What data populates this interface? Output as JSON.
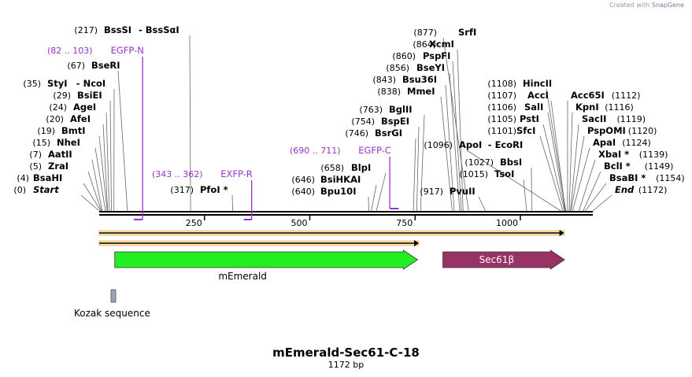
{
  "credit": {
    "prefix": "Created with",
    "brand": "SnapGene"
  },
  "map": {
    "name": "mEmerald-Sec61-C-18",
    "length_text": "1172 bp",
    "length_bp": 1172
  },
  "ticks": [
    {
      "bp": 250,
      "label": "250"
    },
    {
      "bp": 500,
      "label": "500"
    },
    {
      "bp": 750,
      "label": "750"
    },
    {
      "bp": 1000,
      "label": "1000"
    }
  ],
  "enzymes_left": [
    {
      "pos": "(217)",
      "name": "BssSI",
      "extra": "- BssSαI",
      "bp": 217
    },
    {
      "pos": "(67)",
      "name": "BseRI",
      "bp": 67
    },
    {
      "pos": "(35)",
      "name": "StyI",
      "extra": "- NcoI",
      "bp": 35
    },
    {
      "pos": "(29)",
      "name": "BsiEI",
      "bp": 29
    },
    {
      "pos": "(24)",
      "name": "AgeI",
      "bp": 24
    },
    {
      "pos": "(20)",
      "name": "AfeI",
      "bp": 20
    },
    {
      "pos": "(19)",
      "name": "BmtI",
      "bp": 19
    },
    {
      "pos": "(15)",
      "name": "NheI",
      "bp": 15
    },
    {
      "pos": "(7)",
      "name": "AatII",
      "bp": 7
    },
    {
      "pos": "(5)",
      "name": "ZraI",
      "bp": 5
    },
    {
      "pos": "(4)",
      "name": "BsaHI",
      "bp": 4
    },
    {
      "pos": "(0)",
      "name": "Start",
      "bp": 0,
      "italic": true
    },
    {
      "pos": "(317)",
      "name": "PfoI *",
      "bp": 317
    }
  ],
  "enzymes_mid": [
    {
      "pos": "(877)",
      "name": "SrfI",
      "bp": 877
    },
    {
      "pos": "(864)",
      "name": "XcmI",
      "bp": 864
    },
    {
      "pos": "(860)",
      "name": "PspFI",
      "bp": 860
    },
    {
      "pos": "(856)",
      "name": "BseYI",
      "bp": 856
    },
    {
      "pos": "(843)",
      "name": "Bsu36I",
      "bp": 843
    },
    {
      "pos": "(838)",
      "name": "MmeI",
      "bp": 838
    },
    {
      "pos": "(763)",
      "name": "BglII",
      "bp": 763
    },
    {
      "pos": "(754)",
      "name": "BspEI",
      "bp": 754
    },
    {
      "pos": "(746)",
      "name": "BsrGI",
      "bp": 746
    },
    {
      "pos": "(658)",
      "name": "BlpI",
      "bp": 658
    },
    {
      "pos": "(646)",
      "name": "BsiHKAI",
      "bp": 646
    },
    {
      "pos": "(640)",
      "name": "Bpu10I",
      "bp": 640
    },
    {
      "pos": "(917)",
      "name": "PvuII",
      "bp": 917
    },
    {
      "pos": "(1096)",
      "name": "ApoI",
      "extra": "- EcoRI",
      "bp": 1096
    },
    {
      "pos": "(1027)",
      "name": "BbsI",
      "bp": 1027
    },
    {
      "pos": "(1015)",
      "name": "TsoI",
      "bp": 1015
    }
  ],
  "enzymes_right_a": [
    {
      "pos": "(1108)",
      "name": "HincII",
      "bp": 1108
    },
    {
      "pos": "(1107)",
      "name": "AccI",
      "bp": 1107
    },
    {
      "pos": "(1106)",
      "name": "SalI",
      "bp": 1106
    },
    {
      "pos": "(1105)",
      "name": "PstI",
      "bp": 1105
    },
    {
      "pos": "(1101)",
      "name": "SfcI",
      "bp": 1101
    }
  ],
  "enzymes_right_b": [
    {
      "pos": "(1112)",
      "name": "Acc65I",
      "bp": 1112
    },
    {
      "pos": "(1116)",
      "name": "KpnI",
      "bp": 1116
    },
    {
      "pos": "(1119)",
      "name": "SacII",
      "bp": 1119
    },
    {
      "pos": "(1120)",
      "name": "PspOMI",
      "bp": 1120
    },
    {
      "pos": "(1124)",
      "name": "ApaI",
      "bp": 1124
    },
    {
      "pos": "(1139)",
      "name": "XbaI *",
      "bp": 1139
    },
    {
      "pos": "(1149)",
      "name": "BclI *",
      "bp": 1149
    },
    {
      "pos": "(1154)",
      "name": "BsaBI *",
      "bp": 1154
    },
    {
      "pos": "(1172)",
      "name": "End",
      "bp": 1172,
      "italic": true
    }
  ],
  "primers": [
    {
      "range": "(82 .. 103)",
      "name": "EGFP-N",
      "start": 82,
      "end": 103
    },
    {
      "range": "(343 .. 362)",
      "name": "EXFP-R",
      "start": 343,
      "end": 362
    },
    {
      "range": "(690 .. 711)",
      "name": "EGFP-C",
      "start": 690,
      "end": 711
    }
  ],
  "features": [
    {
      "name": "mEmerald",
      "start": 37,
      "end": 756,
      "color": "#22ee22",
      "label_pos": "below"
    },
    {
      "name": "Sec61β",
      "start": 816,
      "end": 1105,
      "color": "#993366",
      "label_pos": "inside"
    },
    {
      "name": "Kozak sequence",
      "start": 29,
      "end": 38,
      "color": "#9aa3b8",
      "label_pos": "below"
    }
  ],
  "orf_bars": [
    {
      "start": 0,
      "end": 1104,
      "color": "#f5a623"
    },
    {
      "start": 0,
      "end": 759,
      "color": "#f5a623"
    }
  ],
  "colors": {
    "primer": "#9933cc",
    "backbone": "#000000",
    "leader": "#777777"
  }
}
